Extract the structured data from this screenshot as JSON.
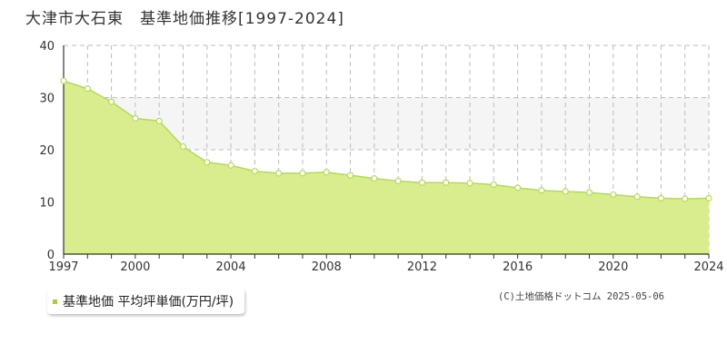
{
  "title": "大津市大石東　基準地価推移[1997-2024]",
  "legend": {
    "label": "基準地価 平均坪単価(万円/坪)",
    "color": "#a6d033"
  },
  "copyright": "(C)土地価格ドットコム 2025-05-06",
  "colors": {
    "area": "#d9ed8f",
    "line": "#b5dc4b",
    "band": "#f5f5f5"
  },
  "chart_data": {
    "type": "area",
    "x": [
      1997,
      1998,
      1999,
      2000,
      2001,
      2002,
      2003,
      2004,
      2005,
      2006,
      2007,
      2008,
      2009,
      2010,
      2011,
      2012,
      2013,
      2014,
      2015,
      2016,
      2017,
      2018,
      2019,
      2020,
      2021,
      2022,
      2023,
      2024
    ],
    "series": [
      {
        "values": [
          33.2,
          31.7,
          29.2,
          26.0,
          25.5,
          20.6,
          17.6,
          17.0,
          15.9,
          15.5,
          15.5,
          15.7,
          15.1,
          14.5,
          14.0,
          13.7,
          13.7,
          13.6,
          13.3,
          12.7,
          12.2,
          12.0,
          11.8,
          11.4,
          11.0,
          10.7,
          10.6,
          10.7
        ]
      }
    ],
    "xticks": [
      "1997",
      "2000",
      "2004",
      "2008",
      "2012",
      "2016",
      "2020",
      "2024"
    ],
    "yticks": [
      "0",
      "10",
      "20",
      "30",
      "40"
    ],
    "xlim": [
      1997,
      2024
    ],
    "ylim": [
      0,
      40
    ],
    "shaded_band": [
      20,
      30
    ],
    "grid": true
  }
}
